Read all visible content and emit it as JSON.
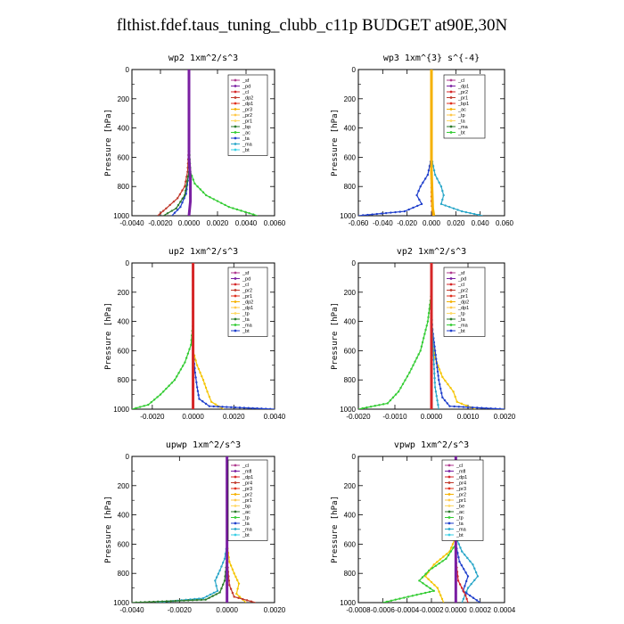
{
  "title": "flthist.fdef.taus_tuning_clubb_c11p  BUDGET at90E,30N",
  "chart_data": [
    {
      "type": "line",
      "title": "wp2   1xm^2/s^3",
      "ylabel": "Pressure [hPa]",
      "xlim": [
        -0.004,
        0.006
      ],
      "ylim": [
        1000,
        0
      ],
      "xticks": [
        "-0.0040",
        "-0.0020",
        "0.0000",
        "0.0020",
        "0.0040",
        "0.0060"
      ],
      "xtick_values": [
        -0.004,
        -0.002,
        0,
        0.002,
        0.004,
        0.006
      ],
      "yticks": [
        0,
        200,
        400,
        600,
        800,
        1000
      ],
      "legend": [
        "_sf",
        "_pd",
        "_cl",
        "_dp2",
        "_dp1",
        "_pr3",
        "_pr2",
        "_pr1",
        "_bp",
        "_ac",
        "_ta",
        "_ma",
        "_bt"
      ],
      "series": [
        {
          "name": "_dp1",
          "color": "#c0392b",
          "x": [
            0,
            0,
            -0.0001,
            -0.0003,
            -0.0008,
            -0.0016,
            -0.0022
          ],
          "y": [
            0,
            500,
            700,
            800,
            880,
            950,
            1000
          ]
        },
        {
          "name": "_pr1",
          "color": "#33cc33",
          "x": [
            0,
            0,
            0.0001,
            0.0004,
            0.0012,
            0.0028,
            0.0048
          ],
          "y": [
            0,
            500,
            700,
            780,
            860,
            940,
            1000
          ]
        },
        {
          "name": "_ta",
          "color": "#1f3fcc",
          "x": [
            0,
            0,
            -0.0002,
            -0.0006,
            -0.0012
          ],
          "y": [
            0,
            700,
            850,
            940,
            1000
          ]
        },
        {
          "name": "_bp",
          "color": "#2b7a2b",
          "x": [
            0,
            0,
            -0.0003,
            -0.0009,
            -0.0018
          ],
          "y": [
            0,
            700,
            860,
            950,
            1000
          ]
        },
        {
          "name": "_pd",
          "color": "#7a1fa2",
          "x": [
            0,
            0,
            0.0001,
            0.0001,
            0
          ],
          "y": [
            0,
            600,
            750,
            900,
            1000
          ]
        }
      ]
    },
    {
      "type": "line",
      "title": "wp3   1xm^{3} s^{-4}",
      "ylabel": "Pressure [hPa]",
      "xlim": [
        -0.06,
        0.06
      ],
      "ylim": [
        1000,
        0
      ],
      "xticks": [
        "-0.060",
        "-0.040",
        "-0.020",
        "0.000",
        "0.020",
        "0.040",
        "0.060"
      ],
      "xtick_values": [
        -0.06,
        -0.04,
        -0.02,
        0,
        0.02,
        0.04,
        0.06
      ],
      "yticks": [
        0,
        200,
        400,
        600,
        800,
        1000
      ],
      "legend": [
        "_cl",
        "_dp1",
        "_pr2",
        "_pr1",
        "_bp1",
        "_ac",
        "_tp",
        "_ta",
        "_ma",
        "_bt"
      ],
      "series": [
        {
          "name": "_tp",
          "color": "#1f3fcc",
          "x": [
            0,
            0,
            -0.003,
            -0.009,
            -0.012,
            -0.008,
            -0.022,
            -0.06
          ],
          "y": [
            0,
            600,
            720,
            800,
            860,
            920,
            970,
            1000
          ]
        },
        {
          "name": "_ta",
          "color": "#2aa7c9",
          "x": [
            0,
            0,
            0.003,
            0.008,
            0.01,
            0.008,
            0.025,
            0.042
          ],
          "y": [
            0,
            600,
            720,
            800,
            860,
            920,
            970,
            1000
          ]
        },
        {
          "name": "_cl",
          "color": "#d62728",
          "x": [
            0,
            0,
            0,
            0.001
          ],
          "y": [
            0,
            500,
            900,
            1000
          ]
        },
        {
          "name": "_ac",
          "color": "#f5b100",
          "x": [
            0,
            0,
            0.001,
            0.002
          ],
          "y": [
            0,
            700,
            950,
            1000
          ]
        }
      ]
    },
    {
      "type": "line",
      "title": "up2   1xm^2/s^3",
      "ylabel": "Pressure [hPa]",
      "xlim": [
        -0.003,
        0.004
      ],
      "ylim": [
        1000,
        0
      ],
      "xticks": [
        "-0.0020",
        "0.0000",
        "0.0020",
        "0.0040"
      ],
      "xtick_values": [
        -0.002,
        0,
        0.002,
        0.004
      ],
      "yticks": [
        0,
        200,
        400,
        600,
        800,
        1000
      ],
      "legend": [
        "_sf",
        "_pd",
        "_cl",
        "_pr2",
        "_pr1",
        "_dp2",
        "_dp1",
        "_tp",
        "_ta",
        "_ma",
        "_bt"
      ],
      "series": [
        {
          "name": "_dp1",
          "color": "#33cc33",
          "x": [
            0,
            0,
            -0.0001,
            -0.0004,
            -0.0009,
            -0.0016,
            -0.0022,
            -0.003
          ],
          "y": [
            0,
            400,
            560,
            680,
            800,
            900,
            970,
            1000
          ]
        },
        {
          "name": "_pr1",
          "color": "#f5c400",
          "x": [
            0,
            0,
            0.0002,
            0.0005,
            0.0007,
            0.0009,
            0.0015
          ],
          "y": [
            0,
            600,
            700,
            800,
            880,
            950,
            1000
          ]
        },
        {
          "name": "_tp",
          "color": "#1f3fcc",
          "x": [
            0,
            0,
            0.0001,
            0.0002,
            0.0003,
            0.0008,
            0.004
          ],
          "y": [
            0,
            600,
            750,
            850,
            930,
            980,
            1000
          ]
        },
        {
          "name": "_cl",
          "color": "#d62728",
          "x": [
            0,
            0,
            0,
            0
          ],
          "y": [
            0,
            500,
            900,
            1000
          ]
        }
      ]
    },
    {
      "type": "line",
      "title": "vp2   1xm^2/s^3",
      "ylabel": "Pressure [hPa]",
      "xlim": [
        -0.002,
        0.002
      ],
      "ylim": [
        1000,
        0
      ],
      "xticks": [
        "-0.0020",
        "-0.0010",
        "0.0000",
        "0.0010",
        "0.0020"
      ],
      "xtick_values": [
        -0.002,
        -0.001,
        0,
        0.001,
        0.002
      ],
      "yticks": [
        0,
        200,
        400,
        600,
        800,
        1000
      ],
      "legend": [
        "_sf",
        "_pd",
        "_cl",
        "_pr2",
        "_pr1",
        "_dp2",
        "_dp1",
        "_tp",
        "_ta",
        "_ma",
        "_bt"
      ],
      "series": [
        {
          "name": "_dp1",
          "color": "#33cc33",
          "x": [
            0,
            0,
            -0.0001,
            -0.0003,
            -0.0006,
            -0.0009,
            -0.0012,
            -0.002
          ],
          "y": [
            0,
            200,
            400,
            600,
            750,
            880,
            960,
            1000
          ]
        },
        {
          "name": "_pr1",
          "color": "#f5c400",
          "x": [
            0,
            0,
            0.0001,
            0.0003,
            0.0006,
            0.0007,
            0.0012
          ],
          "y": [
            0,
            500,
            650,
            780,
            880,
            950,
            1000
          ]
        },
        {
          "name": "_tp",
          "color": "#1f3fcc",
          "x": [
            0,
            0,
            0.0001,
            0.0002,
            0.0003,
            0.0005,
            0.002
          ],
          "y": [
            0,
            400,
            600,
            800,
            920,
            980,
            1000
          ]
        },
        {
          "name": "_ta",
          "color": "#2aa7c9",
          "x": [
            0,
            0,
            5e-05,
            0.0001,
            0.0002
          ],
          "y": [
            0,
            300,
            600,
            850,
            1000
          ]
        },
        {
          "name": "_cl",
          "color": "#d62728",
          "x": [
            0,
            0,
            0,
            0
          ],
          "y": [
            0,
            500,
            900,
            1000
          ]
        }
      ]
    },
    {
      "type": "line",
      "title": "upwp   1xm^2/s^3",
      "ylabel": "Pressure [hPa]",
      "xlim": [
        -0.004,
        0.002
      ],
      "ylim": [
        1000,
        0
      ],
      "xticks": [
        "-0.0040",
        "-0.0020",
        "0.0000",
        "0.0020"
      ],
      "xtick_values": [
        -0.004,
        -0.002,
        0,
        0.002
      ],
      "yticks": [
        0,
        200,
        400,
        600,
        800,
        1000
      ],
      "legend": [
        "_cl",
        "_mfl",
        "_dp1",
        "_pr4",
        "_pr3",
        "_pr2",
        "_pr1",
        "_bp",
        "_ac",
        "_tp",
        "_ta",
        "_ma",
        "_bt"
      ],
      "series": [
        {
          "name": "_ac",
          "color": "#2aa7c9",
          "x": [
            0,
            0,
            -0.0001,
            -0.0003,
            -0.0005,
            -0.0004,
            -0.001,
            -0.003
          ],
          "y": [
            0,
            600,
            700,
            780,
            850,
            920,
            970,
            1000
          ]
        },
        {
          "name": "_pr1",
          "color": "#f5c400",
          "x": [
            0,
            0,
            0.0001,
            0.0003,
            0.0005,
            0.0004,
            0.0008
          ],
          "y": [
            0,
            600,
            720,
            800,
            870,
            940,
            1000
          ]
        },
        {
          "name": "_bp",
          "color": "#2b7a2b",
          "x": [
            0,
            0,
            -0.0001,
            -0.0003,
            -0.0009,
            -0.004
          ],
          "y": [
            0,
            700,
            850,
            930,
            980,
            1000
          ]
        },
        {
          "name": "_dp1",
          "color": "#c0392b",
          "x": [
            0,
            0,
            0.0001,
            0.0003,
            0.0012
          ],
          "y": [
            0,
            700,
            880,
            960,
            1000
          ]
        },
        {
          "name": "_cl",
          "color": "#7a1fa2",
          "x": [
            0,
            0,
            0,
            0
          ],
          "y": [
            0,
            500,
            900,
            1000
          ]
        }
      ]
    },
    {
      "type": "line",
      "title": "vpwp   1xm^2/s^3",
      "ylabel": "Pressure [hPa]",
      "xlim": [
        -0.0008,
        0.0004
      ],
      "ylim": [
        1000,
        0
      ],
      "xticks": [
        "-0.0008",
        "-0.0006",
        "-0.0004",
        "-0.0002",
        "0.0000",
        "0.0002",
        "0.0004"
      ],
      "xtick_values": [
        -0.0008,
        -0.0006,
        -0.0004,
        -0.0002,
        0,
        0.0002,
        0.0004
      ],
      "yticks": [
        0,
        200,
        400,
        600,
        800,
        1000
      ],
      "legend": [
        "_cl",
        "_mfl",
        "_dp1",
        "_pr4",
        "_pr3",
        "_pr2",
        "_pr1",
        "_be",
        "_ac",
        "_tp",
        "_ta",
        "_ma",
        "_bt"
      ],
      "series": [
        {
          "name": "_pr1",
          "color": "#f5c400",
          "x": [
            0,
            0,
            -5e-05,
            -0.00018,
            -0.00025,
            -0.00015,
            -0.0001
          ],
          "y": [
            0,
            550,
            650,
            740,
            820,
            900,
            1000
          ]
        },
        {
          "name": "_bp",
          "color": "#33cc33",
          "x": [
            0,
            0,
            -8e-05,
            -0.00022,
            -0.0003,
            -0.00018,
            -0.0006
          ],
          "y": [
            0,
            600,
            700,
            780,
            850,
            920,
            1000
          ]
        },
        {
          "name": "_ta",
          "color": "#2aa7c9",
          "x": [
            0,
            0,
            5e-05,
            0.00014,
            0.00018,
            0.0001,
            5e-05
          ],
          "y": [
            0,
            550,
            650,
            740,
            820,
            900,
            1000
          ]
        },
        {
          "name": "_tp",
          "color": "#1f3fcc",
          "x": [
            0,
            0,
            3e-05,
            0.0001,
            6e-05,
            0.0002
          ],
          "y": [
            0,
            600,
            720,
            820,
            920,
            1000
          ]
        },
        {
          "name": "_dp1",
          "color": "#d62728",
          "x": [
            0,
            0,
            2e-05,
            8e-05,
            0.0001
          ],
          "y": [
            0,
            700,
            850,
            950,
            1000
          ]
        },
        {
          "name": "_cl",
          "color": "#7a1fa2",
          "x": [
            0,
            0,
            0,
            0
          ],
          "y": [
            0,
            500,
            900,
            1000
          ]
        }
      ]
    }
  ]
}
